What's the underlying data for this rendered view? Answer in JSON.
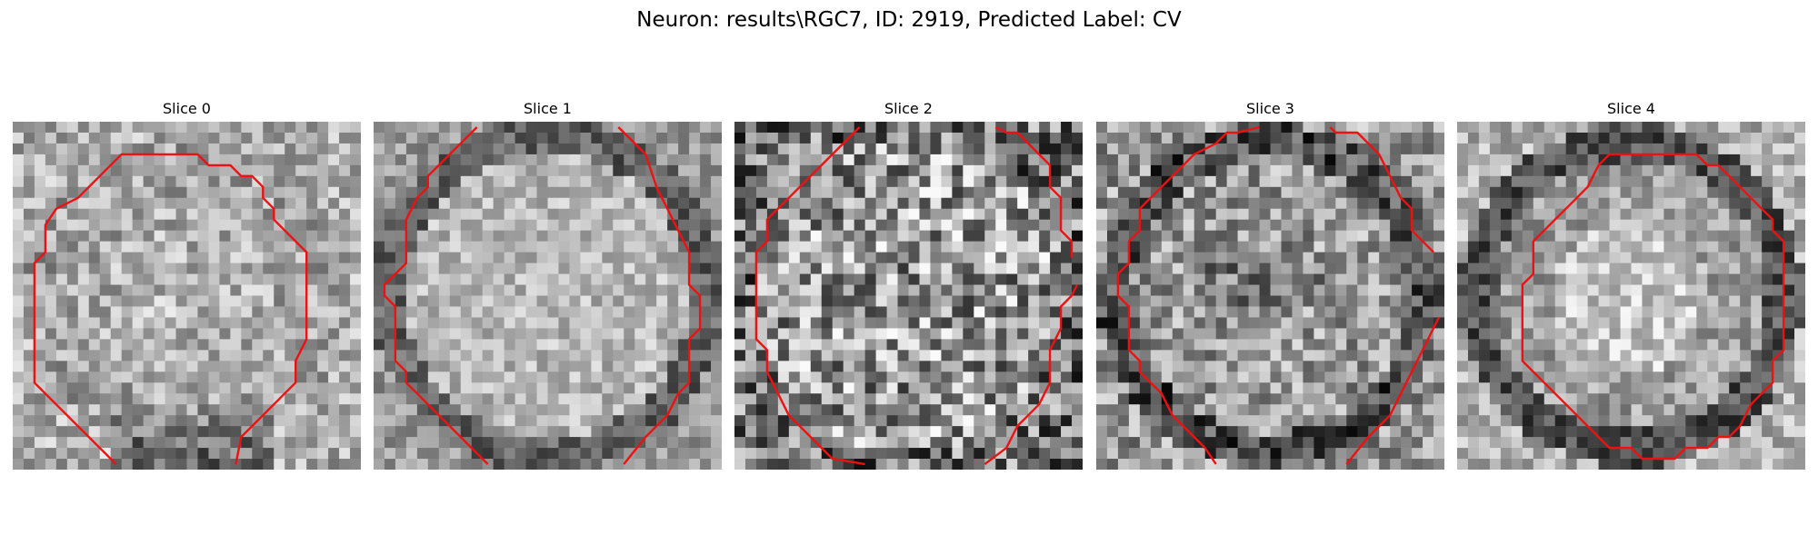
{
  "figure": {
    "title": "Neuron: results\\RGC7, ID: 2919, Predicted Label: CV"
  },
  "panels": [
    {
      "title": "Slice 0",
      "brightness_profile": "bright-center-dark-lower",
      "seed": 11
    },
    {
      "title": "Slice 1",
      "brightness_profile": "bright-fill-dark-ring",
      "seed": 23
    },
    {
      "title": "Slice 2",
      "brightness_profile": "noisy-uniform",
      "seed": 37
    },
    {
      "title": "Slice 3",
      "brightness_profile": "dark-ring-mid-fill",
      "seed": 51
    },
    {
      "title": "Slice 4",
      "brightness_profile": "bright-center-dark-ring",
      "seed": 67
    }
  ],
  "colors": {
    "contour": "#ee1111",
    "background": "#ffffff"
  }
}
